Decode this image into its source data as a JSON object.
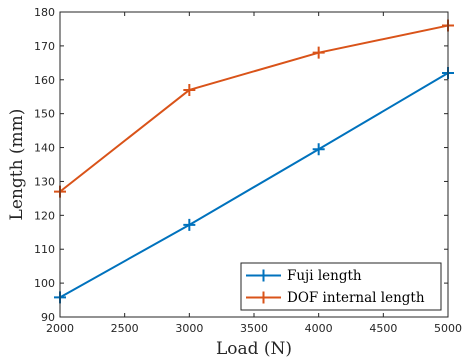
{
  "chart_data": {
    "type": "line",
    "xlabel": "Load (N)",
    "ylabel": "Length (mm)",
    "xlim": [
      2000,
      5000
    ],
    "ylim": [
      90,
      180
    ],
    "xticks": [
      2000,
      2500,
      3000,
      3500,
      4000,
      4500,
      5000
    ],
    "yticks": [
      90,
      100,
      110,
      120,
      130,
      140,
      150,
      160,
      170,
      180
    ],
    "grid": false,
    "legend_position": "bottom-right",
    "series": [
      {
        "name": "Fuji length",
        "color": "#0072bd",
        "marker": "plus",
        "x": [
          2000,
          3000,
          4000,
          5000
        ],
        "y": [
          95.8,
          117.2,
          139.5,
          162
        ]
      },
      {
        "name": "DOF internal length",
        "color": "#d95319",
        "marker": "plus",
        "x": [
          2000,
          3000,
          4000,
          5000
        ],
        "y": [
          127,
          157,
          168,
          176
        ]
      }
    ]
  }
}
